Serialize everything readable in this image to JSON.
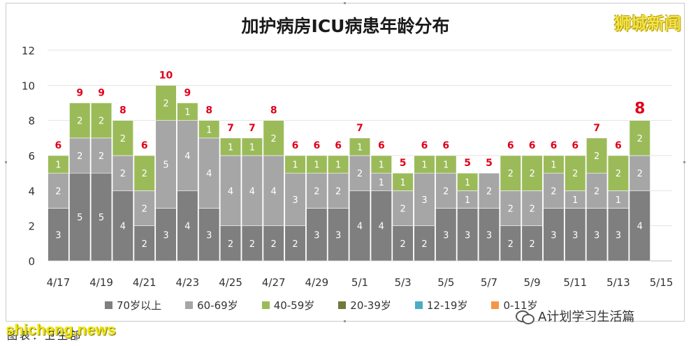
{
  "chart_data": {
    "type": "bar",
    "stacked": true,
    "title": "加护病房ICU病患年龄分布",
    "xlabel": "",
    "ylabel": "",
    "ylim": [
      0,
      12
    ],
    "yticks": [
      0,
      2,
      4,
      6,
      8,
      10,
      12
    ],
    "grid": true,
    "legend_position": "bottom",
    "categories": [
      "4/17",
      "4/18",
      "4/19",
      "4/20",
      "4/21",
      "4/22",
      "4/23",
      "4/24",
      "4/25",
      "4/26",
      "4/27",
      "4/28",
      "4/29",
      "4/30",
      "5/1",
      "5/2",
      "5/3",
      "5/4",
      "5/5",
      "5/6",
      "5/7",
      "5/8",
      "5/9",
      "5/10",
      "5/11",
      "5/12",
      "5/13",
      "5/14",
      "5/15"
    ],
    "x_tick_labels": [
      "4/17",
      "4/19",
      "4/21",
      "4/23",
      "4/25",
      "4/27",
      "4/29",
      "5/1",
      "5/3",
      "5/5",
      "5/7",
      "5/9",
      "5/11",
      "5/13",
      "5/15"
    ],
    "series": [
      {
        "name": "70岁以上",
        "color": "#7f7f7f",
        "values": [
          3,
          5,
          5,
          4,
          2,
          3,
          4,
          3,
          2,
          2,
          2,
          2,
          3,
          3,
          4,
          4,
          2,
          2,
          3,
          3,
          3,
          2,
          2,
          3,
          3,
          3,
          3,
          4,
          null
        ]
      },
      {
        "name": "60-69岁",
        "color": "#a6a6a6",
        "values": [
          2,
          2,
          2,
          2,
          2,
          5,
          4,
          4,
          4,
          4,
          4,
          3,
          2,
          2,
          2,
          1,
          2,
          3,
          2,
          1,
          2,
          2,
          2,
          2,
          1,
          2,
          1,
          2,
          null
        ]
      },
      {
        "name": "40-59岁",
        "color": "#9bbb59",
        "values": [
          1,
          2,
          2,
          2,
          2,
          2,
          1,
          1,
          1,
          1,
          2,
          1,
          1,
          1,
          1,
          1,
          1,
          1,
          1,
          1,
          0,
          2,
          2,
          1,
          2,
          2,
          2,
          2,
          null
        ]
      },
      {
        "name": "20-39岁",
        "color": "#6f7a3a",
        "values": [
          0,
          0,
          0,
          0,
          0,
          0,
          0,
          0,
          0,
          0,
          0,
          0,
          0,
          0,
          0,
          0,
          0,
          0,
          0,
          0,
          0,
          0,
          0,
          0,
          0,
          0,
          0,
          0,
          null
        ]
      },
      {
        "name": "12-19岁",
        "color": "#4bacc6",
        "values": [
          0,
          0,
          0,
          0,
          0,
          0,
          0,
          0,
          0,
          0,
          0,
          0,
          0,
          0,
          0,
          0,
          0,
          0,
          0,
          0,
          0,
          0,
          0,
          0,
          0,
          0,
          0,
          0,
          null
        ]
      },
      {
        "name": "0-11岁",
        "color": "#f79646",
        "values": [
          0,
          0,
          0,
          0,
          0,
          0,
          0,
          0,
          0,
          0,
          0,
          0,
          0,
          0,
          0,
          0,
          0,
          0,
          0,
          0,
          0,
          0,
          0,
          0,
          0,
          0,
          0,
          0,
          null
        ]
      }
    ],
    "totals": [
      6,
      9,
      9,
      8,
      6,
      10,
      9,
      8,
      7,
      7,
      8,
      6,
      6,
      6,
      7,
      6,
      5,
      6,
      6,
      5,
      5,
      6,
      6,
      6,
      6,
      7,
      6,
      8,
      null
    ],
    "total_label_color": "#e0001b"
  },
  "brand": "狮城新闻",
  "caption": "图表：卫生部",
  "watermark_left": "shicheng.news",
  "watermark_right": "A计划学习生活篇"
}
